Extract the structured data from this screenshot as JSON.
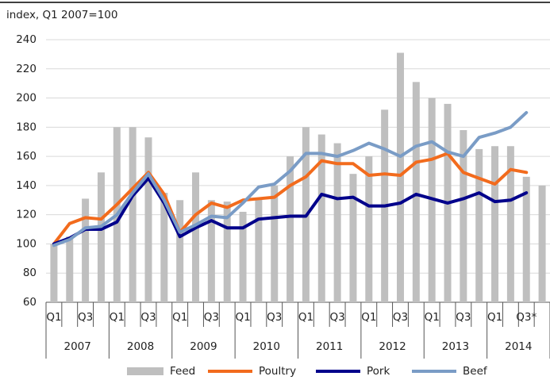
{
  "chart_data": {
    "type": "bar",
    "ylabel": "index, Q1 2007=100",
    "categories": [
      "Q1",
      null,
      "Q3",
      null,
      "Q1",
      null,
      "Q3",
      null,
      "Q1",
      null,
      "Q3",
      null,
      "Q1",
      null,
      "Q3",
      null,
      "Q1",
      null,
      "Q3",
      null,
      "Q1",
      null,
      "Q3",
      null,
      "Q1",
      null,
      "Q3",
      null,
      "Q1",
      null,
      "Q3*",
      null
    ],
    "years": [
      "2007",
      "2008",
      "2009",
      "2010",
      "2011",
      "2012",
      "2013",
      "2014"
    ],
    "ylim": [
      60,
      240
    ],
    "yticks": [
      60,
      80,
      100,
      120,
      140,
      160,
      180,
      200,
      220,
      240
    ],
    "grid": true,
    "series": [
      {
        "name": "Feed",
        "type": "bar",
        "color": "#bfbfbf",
        "values": [
          100,
          105,
          131,
          149,
          180,
          180,
          173,
          135,
          130,
          149,
          130,
          129,
          122,
          131,
          140,
          160,
          180,
          175,
          169,
          148,
          160,
          192,
          231,
          211,
          200,
          196,
          178,
          165,
          167,
          167,
          146,
          140
        ]
      },
      {
        "name": "Poultry",
        "type": "line",
        "color": "#f26b1d",
        "values": [
          100,
          114,
          118,
          117,
          127,
          138,
          149,
          134,
          108,
          120,
          128,
          125,
          130,
          131,
          132,
          140,
          146,
          157,
          155,
          155,
          147,
          148,
          147,
          156,
          158,
          162,
          149,
          145,
          141,
          151,
          149,
          null
        ]
      },
      {
        "name": "Pork",
        "type": "line",
        "color": "#00008b",
        "values": [
          100,
          104,
          110,
          110,
          115,
          133,
          145,
          128,
          105,
          111,
          116,
          111,
          111,
          117,
          118,
          119,
          119,
          134,
          131,
          132,
          126,
          126,
          128,
          134,
          131,
          128,
          131,
          135,
          129,
          130,
          135,
          null
        ]
      },
      {
        "name": "Beef",
        "type": "line",
        "color": "#7a9cc6",
        "values": [
          99,
          103,
          111,
          112,
          120,
          135,
          148,
          130,
          108,
          113,
          119,
          118,
          128,
          139,
          141,
          150,
          162,
          162,
          160,
          164,
          169,
          165,
          160,
          167,
          170,
          163,
          160,
          173,
          176,
          180,
          190,
          null
        ]
      }
    ]
  }
}
